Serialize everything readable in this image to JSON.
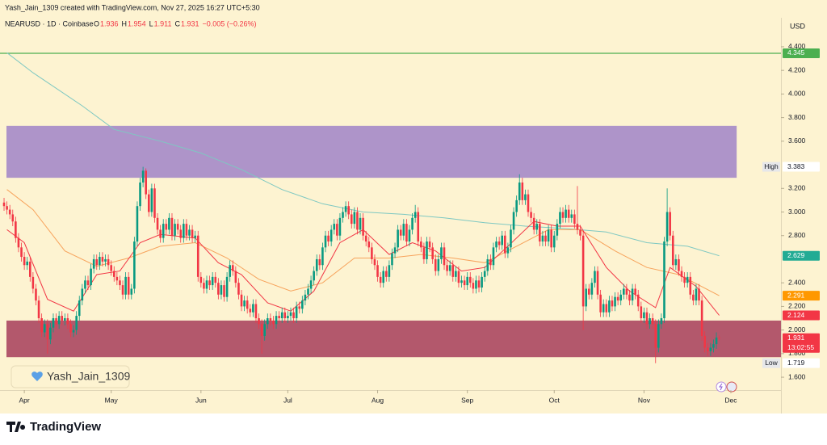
{
  "header": {
    "credit": "Yash_Jain_1309 created with TradingView.com, Nov 27, 2025 16:27 UTC+5:30",
    "symbol": "NEARUSD · 1D · Coinbase",
    "o_label": "O",
    "open": 1.936,
    "h_label": "H",
    "high": 1.954,
    "l_label": "L",
    "low": 1.911,
    "c_label": "C",
    "close": 1.931,
    "change": "−0.005 (−0.26%)",
    "currency": "USD",
    "watermark": "Yash_Jain_1309",
    "brand": "TradingView"
  },
  "chart_data": {
    "type": "candlestick",
    "up_color": "#089981",
    "down_color": "#f23645",
    "xlim": [
      -1.4,
      268.3
    ],
    "ylim": [
      1.491,
      4.646
    ],
    "xticks": [
      {
        "value": 7,
        "label": "Apr"
      },
      {
        "value": 37,
        "label": "May"
      },
      {
        "value": 68,
        "label": "Jun"
      },
      {
        "value": 98,
        "label": "Jul"
      },
      {
        "value": 129,
        "label": "Aug"
      },
      {
        "value": 160,
        "label": "Sep"
      },
      {
        "value": 190,
        "label": "Oct"
      },
      {
        "value": 221,
        "label": "Nov"
      },
      {
        "value": 251,
        "label": "Dec"
      }
    ],
    "yticks": [
      {
        "value": 4.4,
        "label": "4.400"
      },
      {
        "value": 4.2,
        "label": "4.200"
      },
      {
        "value": 4.0,
        "label": "4.000"
      },
      {
        "value": 3.8,
        "label": "3.800"
      },
      {
        "value": 3.6,
        "label": "3.600"
      },
      {
        "value": 3.2,
        "label": "3.200"
      },
      {
        "value": 3.0,
        "label": "3.000"
      },
      {
        "value": 2.8,
        "label": "2.800"
      },
      {
        "value": 2.4,
        "label": "2.400"
      },
      {
        "value": 2.2,
        "label": "2.200"
      },
      {
        "value": 2.0,
        "label": "2.000"
      },
      {
        "value": 1.8,
        "label": "1.800"
      },
      {
        "value": 1.6,
        "label": "1.600"
      }
    ],
    "grid": false,
    "zones": [
      {
        "from": 3.29,
        "to": 3.73,
        "end": 253,
        "color": "#ae94c9"
      },
      {
        "from": 1.77,
        "to": 2.08,
        "end": 268.3,
        "color": "#b3586c"
      }
    ],
    "hline": {
      "value": 4.345,
      "color": "#4caf50"
    },
    "lines": [
      {
        "color": "#7ec8c2",
        "x": [
          1,
          10,
          27,
          38,
          54,
          68,
          82,
          96,
          110,
          124,
          138,
          152,
          166,
          180,
          194,
          208,
          222,
          236,
          247
        ],
        "values": [
          4.35,
          4.18,
          3.9,
          3.7,
          3.6,
          3.5,
          3.36,
          3.19,
          3.07,
          3.0,
          2.98,
          2.95,
          2.91,
          2.88,
          2.86,
          2.83,
          2.74,
          2.71,
          2.629
        ]
      },
      {
        "color": "#f7a35c",
        "x": [
          1,
          10,
          21,
          32,
          43,
          54,
          66,
          77,
          88,
          99,
          110,
          121,
          133,
          144,
          155,
          166,
          177,
          188,
          199,
          211,
          222,
          233,
          247
        ],
        "values": [
          3.19,
          3.02,
          2.67,
          2.54,
          2.61,
          2.71,
          2.74,
          2.61,
          2.43,
          2.33,
          2.4,
          2.61,
          2.61,
          2.64,
          2.61,
          2.57,
          2.71,
          2.85,
          2.85,
          2.67,
          2.53,
          2.47,
          2.291
        ]
      },
      {
        "color": "#f23645",
        "x": [
          1,
          7,
          15,
          24,
          32,
          40,
          47,
          54,
          66,
          74,
          82,
          91,
          99,
          107,
          116,
          124,
          133,
          141,
          149,
          158,
          166,
          174,
          183,
          191,
          199,
          208,
          216,
          225,
          230,
          239,
          247
        ],
        "values": [
          2.85,
          2.74,
          2.26,
          2.16,
          2.47,
          2.5,
          2.74,
          2.81,
          2.78,
          2.57,
          2.47,
          2.23,
          2.16,
          2.33,
          2.74,
          2.85,
          2.64,
          2.74,
          2.67,
          2.5,
          2.53,
          2.71,
          2.92,
          2.88,
          2.88,
          2.53,
          2.33,
          2.19,
          2.53,
          2.37,
          2.124
        ]
      }
    ],
    "price_labels": [
      {
        "value": 4.345,
        "color": "#4caf50",
        "text_color": "#ffffff"
      },
      {
        "title": "High",
        "value": 3.383,
        "color": "#ffffff",
        "text_color": "#131722"
      },
      {
        "value": 2.629,
        "color": "#22ab94",
        "text_color": "#ffffff"
      },
      {
        "value": 2.291,
        "color": "#ff9800",
        "text_color": "#ffffff"
      },
      {
        "value": 2.124,
        "color": "#f23645",
        "text_color": "#ffffff"
      },
      {
        "value": 1.931,
        "color": "#f23645",
        "text_color": "#ffffff",
        "countdown": "13:02:55"
      },
      {
        "title": "Low",
        "value": 1.719,
        "color": "#ffffff",
        "text_color": "#131722"
      }
    ],
    "open": [
      3.08,
      3.05,
      3.02,
      2.98,
      2.92,
      2.78,
      2.7,
      2.62,
      2.55,
      2.58,
      2.45,
      2.35,
      2.25,
      2.1,
      1.98,
      2.05,
      1.92,
      2.02,
      2.1,
      2.05,
      2.12,
      2.08,
      2.1,
      2.05,
      1.98,
      2.0,
      2.12,
      2.25,
      2.35,
      2.42,
      2.38,
      2.52,
      2.6,
      2.55,
      2.62,
      2.58,
      2.6,
      2.55,
      2.5,
      2.45,
      2.42,
      2.38,
      2.3,
      2.45,
      2.3,
      2.35,
      2.75,
      3.05,
      3.25,
      3.35,
      3.15,
      3.0,
      3.2,
      2.95,
      2.85,
      2.78,
      2.9,
      2.85,
      2.95,
      2.8,
      2.9,
      2.85,
      2.78,
      2.9,
      2.8,
      2.85,
      2.78,
      2.8,
      2.45,
      2.4,
      2.35,
      2.42,
      2.38,
      2.45,
      2.4,
      2.3,
      2.38,
      2.28,
      2.45,
      2.55,
      2.5,
      2.4,
      2.3,
      2.2,
      2.25,
      2.18,
      2.15,
      2.22,
      2.1,
      2.05,
      1.95,
      2.05,
      2.1,
      2.08,
      2.05,
      2.12,
      2.1,
      2.15,
      2.1,
      2.12,
      2.15,
      2.1,
      2.2,
      2.18,
      2.25,
      2.3,
      2.35,
      2.42,
      2.5,
      2.6,
      2.55,
      2.7,
      2.8,
      2.75,
      2.85,
      2.9,
      2.8,
      2.95,
      3.0,
      3.05,
      2.98,
      2.9,
      3.0,
      2.85,
      2.95,
      2.8,
      2.75,
      2.7,
      2.6,
      2.55,
      2.45,
      2.4,
      2.5,
      2.45,
      2.55,
      2.65,
      2.7,
      2.85,
      2.8,
      2.9,
      2.75,
      2.85,
      2.95,
      3.0,
      2.75,
      2.7,
      2.6,
      2.75,
      2.7,
      2.6,
      2.5,
      2.6,
      2.7,
      2.55,
      2.5,
      2.55,
      2.45,
      2.5,
      2.4,
      2.42,
      2.38,
      2.45,
      2.4,
      2.35,
      2.42,
      2.36,
      2.45,
      2.5,
      2.6,
      2.55,
      2.7,
      2.75,
      2.72,
      2.8,
      2.65,
      2.7,
      2.85,
      3.0,
      3.1,
      3.25,
      3.1,
      3.15,
      3.0,
      2.95,
      2.85,
      2.9,
      2.75,
      2.8,
      2.75,
      2.85,
      2.7,
      2.8,
      2.9,
      3.0,
      2.95,
      3.02,
      2.95,
      2.98,
      2.9,
      2.85,
      2.8,
      2.2,
      2.35,
      2.3,
      2.4,
      2.5,
      2.3,
      2.15,
      2.22,
      2.15,
      2.25,
      2.2,
      2.28,
      2.25,
      2.3,
      2.35,
      2.3,
      2.25,
      2.35,
      2.3,
      2.2,
      2.1,
      2.15,
      2.05,
      2.1,
      2.05,
      1.85,
      2.05,
      2.1,
      2.75,
      3.0,
      2.8,
      2.55,
      2.6,
      2.5,
      2.45,
      2.4,
      2.45,
      2.3,
      2.25,
      2.35,
      2.25,
      1.95,
      1.85,
      1.82,
      1.85,
      1.88,
      1.936
    ],
    "high": [
      3.12,
      3.09,
      3.06,
      3.02,
      2.96,
      2.82,
      2.74,
      2.66,
      2.62,
      2.62,
      2.49,
      2.39,
      2.29,
      2.14,
      2.09,
      2.09,
      2.06,
      2.14,
      2.14,
      2.16,
      2.16,
      2.14,
      2.14,
      2.09,
      2.04,
      2.16,
      2.29,
      2.39,
      2.46,
      2.46,
      2.56,
      2.64,
      2.64,
      2.66,
      2.66,
      2.64,
      2.64,
      2.59,
      2.54,
      2.49,
      2.46,
      2.42,
      2.49,
      2.49,
      2.39,
      2.79,
      3.09,
      3.29,
      3.383,
      3.37,
      3.19,
      3.24,
      3.24,
      2.99,
      2.89,
      2.94,
      2.94,
      2.99,
      2.99,
      2.94,
      2.94,
      2.89,
      2.94,
      2.94,
      2.89,
      2.89,
      2.84,
      2.84,
      2.49,
      2.44,
      2.46,
      2.46,
      2.49,
      2.49,
      2.44,
      2.42,
      2.42,
      2.49,
      2.59,
      2.59,
      2.54,
      2.44,
      2.34,
      2.29,
      2.29,
      2.22,
      2.26,
      2.26,
      2.14,
      2.09,
      2.09,
      2.14,
      2.14,
      2.12,
      2.16,
      2.16,
      2.19,
      2.19,
      2.16,
      2.19,
      2.19,
      2.24,
      2.24,
      2.29,
      2.34,
      2.39,
      2.46,
      2.54,
      2.64,
      2.64,
      2.74,
      2.84,
      2.84,
      2.89,
      2.94,
      2.94,
      2.99,
      3.04,
      3.09,
      3.09,
      3.02,
      3.04,
      3.04,
      2.99,
      2.99,
      2.84,
      2.79,
      2.74,
      2.64,
      2.59,
      2.49,
      2.54,
      2.54,
      2.59,
      2.69,
      2.74,
      2.89,
      2.89,
      2.94,
      2.94,
      2.89,
      2.99,
      3.06,
      3.04,
      2.79,
      2.74,
      2.79,
      2.79,
      2.74,
      2.64,
      2.64,
      2.74,
      2.74,
      2.59,
      2.59,
      2.59,
      2.54,
      2.54,
      2.46,
      2.46,
      2.49,
      2.49,
      2.44,
      2.46,
      2.46,
      2.49,
      2.54,
      2.64,
      2.64,
      2.74,
      2.79,
      2.79,
      2.84,
      2.84,
      2.74,
      2.89,
      3.04,
      3.14,
      3.32,
      3.29,
      3.19,
      3.19,
      3.04,
      2.99,
      2.94,
      2.94,
      2.84,
      2.84,
      2.89,
      2.89,
      2.84,
      2.94,
      3.04,
      3.04,
      3.06,
      3.06,
      3.02,
      3.02,
      3.22,
      2.89,
      2.84,
      2.39,
      2.39,
      2.44,
      2.54,
      2.54,
      2.34,
      2.26,
      2.26,
      2.29,
      2.29,
      2.32,
      2.32,
      2.34,
      2.39,
      2.39,
      2.34,
      2.39,
      2.39,
      2.34,
      2.24,
      2.19,
      2.19,
      2.14,
      2.14,
      2.09,
      2.09,
      2.14,
      2.79,
      3.2,
      3.04,
      2.84,
      2.64,
      2.64,
      2.54,
      2.49,
      2.49,
      2.49,
      2.34,
      2.39,
      2.39,
      2.29,
      1.99,
      1.89,
      1.89,
      1.92,
      1.98,
      1.954
    ],
    "low": [
      3.01,
      2.98,
      2.94,
      2.88,
      2.74,
      2.66,
      2.58,
      2.51,
      2.51,
      2.41,
      2.31,
      2.21,
      2.06,
      1.94,
      1.94,
      1.8,
      1.88,
      1.98,
      2.01,
      2.01,
      2.04,
      2.04,
      2.01,
      1.94,
      1.94,
      1.96,
      2.08,
      2.21,
      2.31,
      2.34,
      2.34,
      2.48,
      2.51,
      2.51,
      2.54,
      2.54,
      2.51,
      2.46,
      2.41,
      2.38,
      2.34,
      2.26,
      2.26,
      2.26,
      2.26,
      2.31,
      2.71,
      3.01,
      3.21,
      3.11,
      2.96,
      2.96,
      2.91,
      2.81,
      2.74,
      2.74,
      2.81,
      2.81,
      2.76,
      2.76,
      2.81,
      2.74,
      2.74,
      2.76,
      2.76,
      2.74,
      2.74,
      2.41,
      2.36,
      2.31,
      2.31,
      2.34,
      2.34,
      2.36,
      2.26,
      2.26,
      2.24,
      2.24,
      2.41,
      2.46,
      2.36,
      2.26,
      2.16,
      2.16,
      2.14,
      2.11,
      2.11,
      2.06,
      2.01,
      1.8,
      1.91,
      2.01,
      2.04,
      2.01,
      2.01,
      2.06,
      2.06,
      2.06,
      2.06,
      2.08,
      2.06,
      2.06,
      2.14,
      2.14,
      2.21,
      2.26,
      2.31,
      2.38,
      2.46,
      2.51,
      2.51,
      2.66,
      2.71,
      2.71,
      2.81,
      2.76,
      2.76,
      2.91,
      2.96,
      2.94,
      2.86,
      2.86,
      2.81,
      2.81,
      2.76,
      2.71,
      2.66,
      2.56,
      2.51,
      2.41,
      2.36,
      2.36,
      2.41,
      2.41,
      2.51,
      2.61,
      2.66,
      2.76,
      2.76,
      2.71,
      2.71,
      2.81,
      2.91,
      2.71,
      2.66,
      2.56,
      2.56,
      2.66,
      2.56,
      2.46,
      2.46,
      2.56,
      2.51,
      2.46,
      2.46,
      2.41,
      2.41,
      2.36,
      2.36,
      2.34,
      2.34,
      2.36,
      2.31,
      2.31,
      2.32,
      2.32,
      2.41,
      2.46,
      2.51,
      2.51,
      2.66,
      2.68,
      2.68,
      2.61,
      2.61,
      2.66,
      2.81,
      2.96,
      3.06,
      3.06,
      3.06,
      2.96,
      2.91,
      2.81,
      2.81,
      2.71,
      2.71,
      2.71,
      2.71,
      2.66,
      2.66,
      2.76,
      2.86,
      2.91,
      2.91,
      2.91,
      2.91,
      2.86,
      2.81,
      2.76,
      2.0,
      2.16,
      2.26,
      2.26,
      2.36,
      2.26,
      2.11,
      2.11,
      2.11,
      2.11,
      2.16,
      2.16,
      2.21,
      2.21,
      2.26,
      2.26,
      2.21,
      2.21,
      2.26,
      2.16,
      2.06,
      2.06,
      2.01,
      2.01,
      2.01,
      1.719,
      1.81,
      2.01,
      2.06,
      2.71,
      2.76,
      2.51,
      2.51,
      2.46,
      2.41,
      2.36,
      2.36,
      2.26,
      2.21,
      2.21,
      2.21,
      1.91,
      1.81,
      1.78,
      1.78,
      1.81,
      1.84,
      1.911
    ],
    "close": [
      3.05,
      3.02,
      2.98,
      2.92,
      2.78,
      2.7,
      2.62,
      2.55,
      2.58,
      2.45,
      2.35,
      2.25,
      2.1,
      1.98,
      2.05,
      1.92,
      2.02,
      2.1,
      2.05,
      2.12,
      2.08,
      2.1,
      2.05,
      1.98,
      2.0,
      2.12,
      2.25,
      2.35,
      2.42,
      2.38,
      2.52,
      2.6,
      2.55,
      2.62,
      2.58,
      2.6,
      2.55,
      2.5,
      2.45,
      2.42,
      2.38,
      2.3,
      2.45,
      2.3,
      2.35,
      2.75,
      3.05,
      3.25,
      3.35,
      3.15,
      3.0,
      3.2,
      2.95,
      2.85,
      2.78,
      2.9,
      2.85,
      2.95,
      2.8,
      2.9,
      2.85,
      2.78,
      2.9,
      2.8,
      2.85,
      2.78,
      2.8,
      2.45,
      2.4,
      2.35,
      2.42,
      2.38,
      2.45,
      2.4,
      2.3,
      2.38,
      2.28,
      2.45,
      2.55,
      2.5,
      2.4,
      2.3,
      2.2,
      2.25,
      2.18,
      2.15,
      2.22,
      2.1,
      2.05,
      1.95,
      2.05,
      2.1,
      2.08,
      2.05,
      2.12,
      2.1,
      2.15,
      2.1,
      2.12,
      2.15,
      2.1,
      2.2,
      2.18,
      2.25,
      2.3,
      2.35,
      2.42,
      2.5,
      2.6,
      2.55,
      2.7,
      2.8,
      2.75,
      2.85,
      2.9,
      2.8,
      2.95,
      3.0,
      3.05,
      2.98,
      2.9,
      3.0,
      2.85,
      2.95,
      2.8,
      2.75,
      2.7,
      2.6,
      2.55,
      2.45,
      2.4,
      2.5,
      2.45,
      2.55,
      2.65,
      2.7,
      2.85,
      2.8,
      2.9,
      2.75,
      2.85,
      2.95,
      3.0,
      2.75,
      2.7,
      2.6,
      2.75,
      2.7,
      2.6,
      2.5,
      2.6,
      2.7,
      2.55,
      2.5,
      2.55,
      2.45,
      2.5,
      2.4,
      2.42,
      2.38,
      2.45,
      2.4,
      2.35,
      2.42,
      2.36,
      2.45,
      2.5,
      2.6,
      2.55,
      2.7,
      2.75,
      2.72,
      2.8,
      2.65,
      2.7,
      2.85,
      3.0,
      3.1,
      3.25,
      3.1,
      3.15,
      3.0,
      2.95,
      2.85,
      2.9,
      2.75,
      2.8,
      2.75,
      2.85,
      2.7,
      2.8,
      2.9,
      3.0,
      2.95,
      3.02,
      2.95,
      2.98,
      2.9,
      2.85,
      2.8,
      2.2,
      2.35,
      2.3,
      2.4,
      2.5,
      2.3,
      2.15,
      2.22,
      2.15,
      2.25,
      2.2,
      2.28,
      2.25,
      2.3,
      2.35,
      2.3,
      2.25,
      2.35,
      2.3,
      2.2,
      2.1,
      2.15,
      2.05,
      2.1,
      2.05,
      1.85,
      2.05,
      2.1,
      2.75,
      3.0,
      2.8,
      2.55,
      2.6,
      2.5,
      2.45,
      2.4,
      2.45,
      2.3,
      2.25,
      2.35,
      2.25,
      1.95,
      1.85,
      1.82,
      1.85,
      1.88,
      1.936,
      1.931
    ]
  }
}
